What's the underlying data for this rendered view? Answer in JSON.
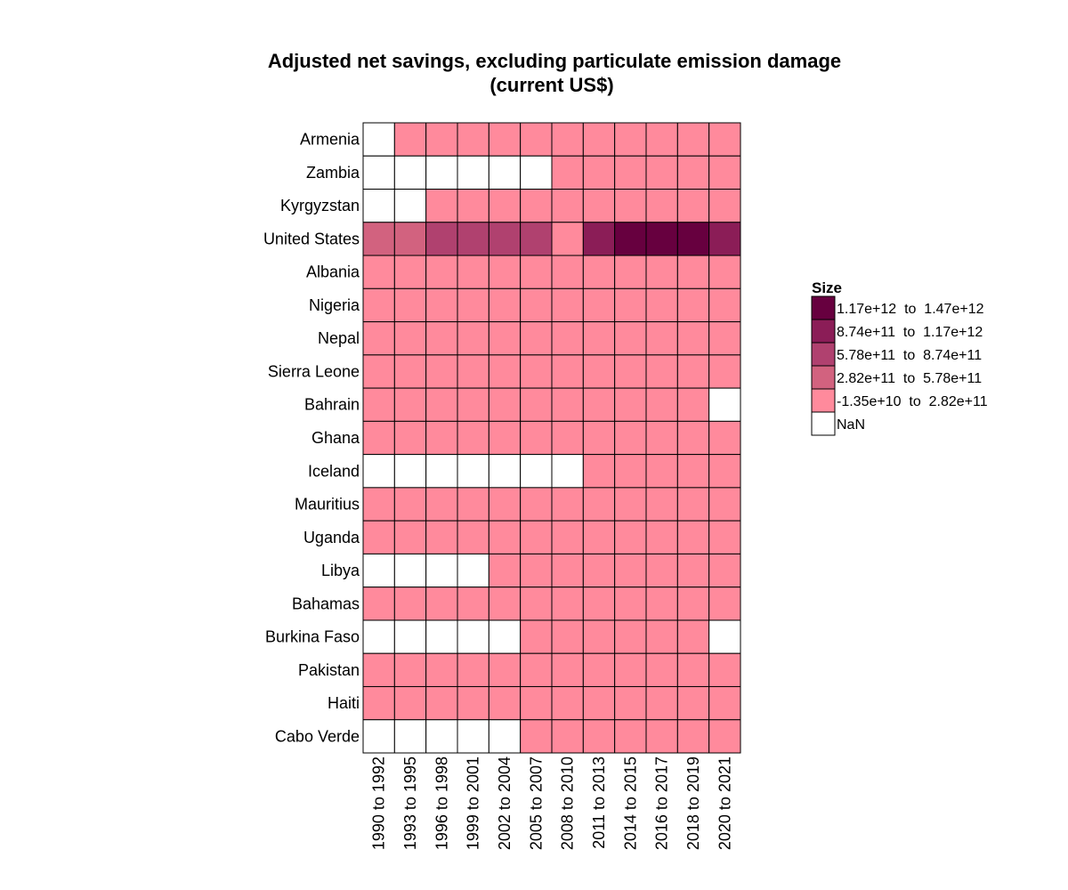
{
  "chart_data": {
    "type": "heatmap",
    "title": "Adjusted net savings, excluding particulate emission damage",
    "subtitle": "(current US$)",
    "x_categories": [
      "1990 to 1992",
      "1993 to 1995",
      "1996 to 1998",
      "1999 to 2001",
      "2002 to 2004",
      "2005 to 2007",
      "2008 to 2010",
      "2011 to 2013",
      "2014 to 2015",
      "2016 to 2017",
      "2018 to 2019",
      "2020 to 2021"
    ],
    "y_categories": [
      "Armenia",
      "Zambia",
      "Kyrgyzstan",
      "United States",
      "Albania",
      "Nigeria",
      "Nepal",
      "Sierra Leone",
      "Bahrain",
      "Ghana",
      "Iceland",
      "Mauritius",
      "Uganda",
      "Libya",
      "Bahamas",
      "Burkina Faso",
      "Pakistan",
      "Haiti",
      "Cabo Verde"
    ],
    "bins": [
      {
        "label": "1.17e+12  to  1.47e+12",
        "color": "#67003f"
      },
      {
        "label": "8.74e+11  to  1.17e+12",
        "color": "#8b1d57"
      },
      {
        "label": "5.78e+11  to  8.74e+11",
        "color": "#b0416f"
      },
      {
        "label": "2.82e+11  to  5.78e+11",
        "color": "#d2627f"
      },
      {
        "label": "-1.35e+10  to  2.82e+11",
        "color": "#ff8a9c"
      },
      {
        "label": "NaN",
        "color": "#ffffff"
      }
    ],
    "cells": [
      [
        5,
        4,
        4,
        4,
        4,
        4,
        4,
        4,
        4,
        4,
        4,
        4
      ],
      [
        5,
        5,
        5,
        5,
        5,
        5,
        4,
        4,
        4,
        4,
        4,
        4
      ],
      [
        5,
        5,
        4,
        4,
        4,
        4,
        4,
        4,
        4,
        4,
        4,
        4
      ],
      [
        3,
        3,
        2,
        2,
        2,
        2,
        4,
        1,
        0,
        0,
        0,
        1
      ],
      [
        4,
        4,
        4,
        4,
        4,
        4,
        4,
        4,
        4,
        4,
        4,
        4
      ],
      [
        4,
        4,
        4,
        4,
        4,
        4,
        4,
        4,
        4,
        4,
        4,
        4
      ],
      [
        4,
        4,
        4,
        4,
        4,
        4,
        4,
        4,
        4,
        4,
        4,
        4
      ],
      [
        4,
        4,
        4,
        4,
        4,
        4,
        4,
        4,
        4,
        4,
        4,
        4
      ],
      [
        4,
        4,
        4,
        4,
        4,
        4,
        4,
        4,
        4,
        4,
        4,
        5
      ],
      [
        4,
        4,
        4,
        4,
        4,
        4,
        4,
        4,
        4,
        4,
        4,
        4
      ],
      [
        5,
        5,
        5,
        5,
        5,
        5,
        5,
        4,
        4,
        4,
        4,
        4
      ],
      [
        4,
        4,
        4,
        4,
        4,
        4,
        4,
        4,
        4,
        4,
        4,
        4
      ],
      [
        4,
        4,
        4,
        4,
        4,
        4,
        4,
        4,
        4,
        4,
        4,
        4
      ],
      [
        5,
        5,
        5,
        5,
        4,
        4,
        4,
        4,
        4,
        4,
        4,
        4
      ],
      [
        4,
        4,
        4,
        4,
        4,
        4,
        4,
        4,
        4,
        4,
        4,
        4
      ],
      [
        5,
        5,
        5,
        5,
        5,
        4,
        4,
        4,
        4,
        4,
        4,
        5
      ],
      [
        4,
        4,
        4,
        4,
        4,
        4,
        4,
        4,
        4,
        4,
        4,
        4
      ],
      [
        4,
        4,
        4,
        4,
        4,
        4,
        4,
        4,
        4,
        4,
        4,
        4
      ],
      [
        5,
        5,
        5,
        5,
        5,
        4,
        4,
        4,
        4,
        4,
        4,
        4
      ]
    ],
    "legend": {
      "title": "Size",
      "position": "right"
    },
    "grid": false
  }
}
